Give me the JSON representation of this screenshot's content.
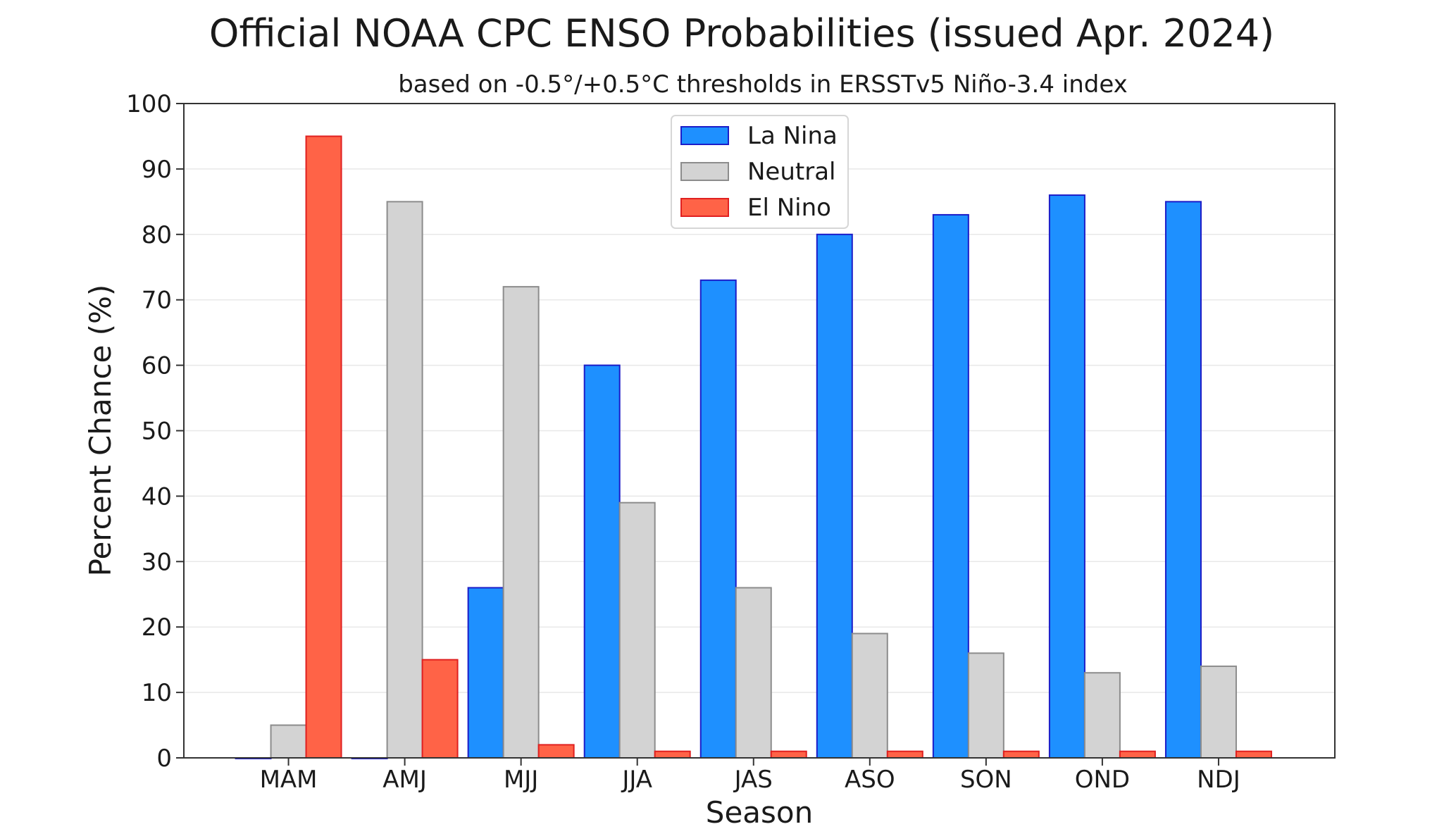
{
  "chart_data": {
    "type": "bar",
    "title": "Official NOAA CPC ENSO Probabilities (issued Apr. 2024)",
    "subtitle": "based on -0.5°/+0.5°C thresholds in ERSSTv5 Niño-3.4 index",
    "xlabel": "Season",
    "ylabel": "Percent Chance (%)",
    "ylim": [
      0,
      100
    ],
    "yticks": [
      0,
      10,
      20,
      30,
      40,
      50,
      60,
      70,
      80,
      90,
      100
    ],
    "grid": true,
    "legend_position": "top-center",
    "categories": [
      "MAM",
      "AMJ",
      "MJJ",
      "JJA",
      "JAS",
      "ASO",
      "SON",
      "OND",
      "NDJ"
    ],
    "series": [
      {
        "name": "La Nina",
        "color": "#1e90ff",
        "edge": "#1c1cc8",
        "values": [
          0,
          0,
          26,
          60,
          73,
          80,
          83,
          86,
          85
        ]
      },
      {
        "name": "Neutral",
        "color": "#d3d3d3",
        "edge": "#8c8c8c",
        "values": [
          5,
          85,
          72,
          39,
          26,
          19,
          16,
          13,
          14
        ]
      },
      {
        "name": "El Nino",
        "color": "#ff6347",
        "edge": "#e02020",
        "values": [
          95,
          15,
          2,
          1,
          1,
          1,
          1,
          1,
          1
        ]
      }
    ]
  }
}
